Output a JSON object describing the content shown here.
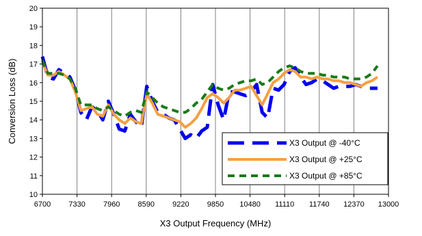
{
  "chart_data": {
    "type": "line",
    "xlabel": "X3 Output Frequency (MHz)",
    "ylabel": "Conversion Loss (dB)",
    "xlim": [
      6700,
      13000
    ],
    "ylim": [
      10,
      20
    ],
    "xticks": [
      6700,
      7330,
      7960,
      8590,
      9220,
      9850,
      10480,
      11110,
      11740,
      12370,
      13000
    ],
    "yticks": [
      10,
      11,
      12,
      13,
      14,
      15,
      16,
      17,
      18,
      19,
      20
    ],
    "grid": "vertical",
    "legend_position": "bottom-right",
    "series": [
      {
        "name": "X3 Output @ -40°C",
        "color": "#0000ee",
        "style": "long-dash",
        "x": [
          6700,
          6800,
          6900,
          7000,
          7100,
          7200,
          7300,
          7400,
          7500,
          7600,
          7700,
          7800,
          7900,
          8000,
          8100,
          8200,
          8300,
          8400,
          8500,
          8600,
          8700,
          8800,
          8900,
          9000,
          9100,
          9200,
          9300,
          9400,
          9500,
          9600,
          9700,
          9800,
          9900,
          10000,
          10100,
          10200,
          10300,
          10400,
          10500,
          10600,
          10700,
          10800,
          10900,
          11000,
          11100,
          11200,
          11300,
          11400,
          11500,
          11600,
          11700,
          11800,
          11900,
          12000,
          12100,
          12200,
          12300,
          12400,
          12500,
          12600,
          12700,
          12800
        ],
        "y": [
          17.4,
          16.3,
          16.2,
          16.7,
          16.5,
          16.3,
          15.6,
          14.4,
          14.0,
          14.7,
          14.5,
          14.0,
          15.0,
          14.3,
          13.5,
          13.4,
          14.3,
          13.9,
          13.6,
          15.8,
          15.0,
          14.4,
          14.3,
          14.1,
          14.0,
          13.5,
          13.0,
          13.2,
          13.0,
          13.4,
          13.6,
          15.9,
          14.8,
          14.0,
          15.5,
          15.5,
          15.4,
          15.3,
          15.5,
          15.9,
          14.4,
          14.1,
          15.7,
          15.6,
          15.9,
          16.6,
          16.8,
          16.3,
          15.9,
          16.0,
          16.2,
          16.1,
          15.9,
          15.7,
          15.8,
          15.8,
          15.8,
          15.9,
          15.8,
          15.7,
          15.7,
          15.7
        ]
      },
      {
        "name": "X3 Output @ +25°C",
        "color": "#f4a042",
        "style": "solid",
        "x": [
          6700,
          6800,
          6900,
          7000,
          7100,
          7200,
          7300,
          7400,
          7500,
          7600,
          7700,
          7800,
          7900,
          8000,
          8100,
          8200,
          8300,
          8400,
          8500,
          8600,
          8700,
          8800,
          8900,
          9000,
          9100,
          9200,
          9300,
          9400,
          9500,
          9600,
          9700,
          9800,
          9900,
          10000,
          10100,
          10200,
          10300,
          10400,
          10500,
          10600,
          10700,
          10800,
          10900,
          11000,
          11100,
          11200,
          11300,
          11400,
          11500,
          11600,
          11700,
          11800,
          11900,
          12000,
          12100,
          12200,
          12300,
          12400,
          12500,
          12600,
          12700,
          12800
        ],
        "y": [
          17.1,
          16.4,
          16.4,
          16.6,
          16.4,
          16.2,
          15.5,
          14.5,
          14.6,
          14.7,
          14.3,
          14.2,
          14.8,
          14.3,
          14.0,
          13.8,
          14.1,
          13.9,
          13.8,
          15.4,
          14.9,
          14.3,
          14.2,
          14.1,
          14.0,
          13.9,
          13.6,
          13.8,
          14.1,
          14.6,
          15.2,
          15.4,
          15.2,
          14.9,
          15.2,
          15.6,
          15.6,
          15.7,
          15.8,
          15.3,
          14.8,
          15.4,
          16.0,
          16.2,
          16.5,
          16.7,
          16.6,
          16.3,
          16.3,
          16.2,
          16.3,
          16.2,
          16.2,
          16.1,
          16.1,
          16.0,
          16.0,
          15.9,
          15.8,
          16.0,
          16.1,
          16.3
        ]
      },
      {
        "name": "X3 Output @ +85°C",
        "color": "#1a7a1a",
        "style": "short-dash",
        "x": [
          6700,
          6800,
          6900,
          7000,
          7100,
          7200,
          7300,
          7400,
          7500,
          7600,
          7700,
          7800,
          7900,
          8000,
          8100,
          8200,
          8300,
          8400,
          8500,
          8600,
          8700,
          8800,
          8900,
          9000,
          9100,
          9200,
          9300,
          9400,
          9500,
          9600,
          9700,
          9800,
          9900,
          10000,
          10100,
          10200,
          10300,
          10400,
          10500,
          10600,
          10700,
          10800,
          10900,
          11000,
          11100,
          11200,
          11300,
          11400,
          11500,
          11600,
          11700,
          11800,
          11900,
          12000,
          12100,
          12200,
          12300,
          12400,
          12500,
          12600,
          12700,
          12800
        ],
        "y": [
          17.2,
          16.5,
          16.5,
          16.5,
          16.4,
          16.2,
          15.7,
          14.8,
          14.8,
          14.8,
          14.6,
          14.5,
          14.7,
          14.5,
          14.3,
          14.2,
          14.4,
          14.5,
          14.4,
          15.5,
          15.2,
          14.9,
          14.7,
          14.6,
          14.5,
          14.4,
          14.4,
          14.6,
          14.9,
          15.1,
          15.5,
          15.9,
          15.7,
          15.6,
          15.7,
          15.9,
          16.0,
          16.1,
          16.1,
          16.2,
          15.9,
          16.0,
          16.3,
          16.6,
          16.8,
          16.9,
          16.8,
          16.6,
          16.5,
          16.5,
          16.5,
          16.4,
          16.4,
          16.3,
          16.3,
          16.3,
          16.2,
          16.2,
          16.2,
          16.3,
          16.5,
          16.9
        ]
      }
    ]
  }
}
